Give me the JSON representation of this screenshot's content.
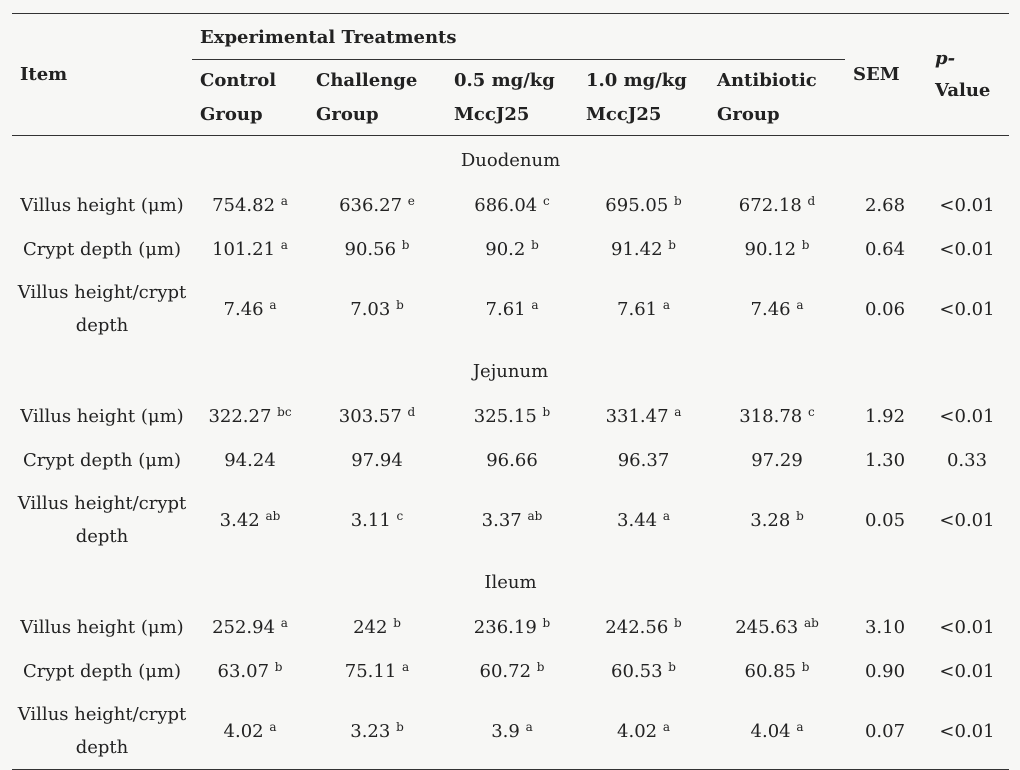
{
  "table": {
    "header": {
      "item": "Item",
      "group_span": "Experimental Treatments",
      "groups": [
        {
          "line1": "Control",
          "line2": "Group"
        },
        {
          "line1": "Challenge",
          "line2": "Group"
        },
        {
          "line1": "0.5 mg/kg",
          "line2": "MccJ25"
        },
        {
          "line1": "1.0 mg/kg",
          "line2": "MccJ25"
        },
        {
          "line1": "Antibiotic",
          "line2": "Group"
        }
      ],
      "sem": "SEM",
      "p_line1": "p-",
      "p_line2": "Value"
    },
    "sections": [
      {
        "name": "Duodenum",
        "rows": [
          {
            "item": "Villus height (μm)",
            "cells": [
              [
                "754.82",
                "a"
              ],
              [
                "636.27",
                "e"
              ],
              [
                "686.04",
                "c"
              ],
              [
                "695.05",
                "b"
              ],
              [
                "672.18",
                "d"
              ]
            ],
            "sem": "2.68",
            "p": "<0.01"
          },
          {
            "item": "Crypt depth (μm)",
            "cells": [
              [
                "101.21",
                "a"
              ],
              [
                "90.56",
                "b"
              ],
              [
                "90.2",
                "b"
              ],
              [
                "91.42",
                "b"
              ],
              [
                "90.12",
                "b"
              ]
            ],
            "sem": "0.64",
            "p": "<0.01"
          },
          {
            "item_line1": "Villus height/crypt",
            "item_line2": "depth",
            "cells": [
              [
                "7.46",
                "a"
              ],
              [
                "7.03",
                "b"
              ],
              [
                "7.61",
                "a"
              ],
              [
                "7.61",
                "a"
              ],
              [
                "7.46",
                "a"
              ]
            ],
            "sem": "0.06",
            "p": "<0.01"
          }
        ]
      },
      {
        "name": "Jejunum",
        "rows": [
          {
            "item": "Villus height (μm)",
            "cells": [
              [
                "322.27",
                "bc"
              ],
              [
                "303.57",
                "d"
              ],
              [
                "325.15",
                "b"
              ],
              [
                "331.47",
                "a"
              ],
              [
                "318.78",
                "c"
              ]
            ],
            "sem": "1.92",
            "p": "<0.01"
          },
          {
            "item": "Crypt depth (μm)",
            "cells": [
              [
                "94.24",
                ""
              ],
              [
                "97.94",
                ""
              ],
              [
                "96.66",
                ""
              ],
              [
                "96.37",
                ""
              ],
              [
                "97.29",
                ""
              ]
            ],
            "sem": "1.30",
            "p": "0.33"
          },
          {
            "item_line1": "Villus height/crypt",
            "item_line2": "depth",
            "cells": [
              [
                "3.42",
                "ab"
              ],
              [
                "3.11",
                "c"
              ],
              [
                "3.37",
                "ab"
              ],
              [
                "3.44",
                "a"
              ],
              [
                "3.28",
                "b"
              ]
            ],
            "sem": "0.05",
            "p": "<0.01"
          }
        ]
      },
      {
        "name": "Ileum",
        "rows": [
          {
            "item": "Villus height (μm)",
            "cells": [
              [
                "252.94",
                "a"
              ],
              [
                "242",
                "b"
              ],
              [
                "236.19",
                "b"
              ],
              [
                "242.56",
                "b"
              ],
              [
                "245.63",
                "ab"
              ]
            ],
            "sem": "3.10",
            "p": "<0.01"
          },
          {
            "item": "Crypt depth (μm)",
            "cells": [
              [
                "63.07",
                "b"
              ],
              [
                "75.11",
                "a"
              ],
              [
                "60.72",
                "b"
              ],
              [
                "60.53",
                "b"
              ],
              [
                "60.85",
                "b"
              ]
            ],
            "sem": "0.90",
            "p": "<0.01"
          },
          {
            "item_line1": "Villus height/crypt",
            "item_line2": "depth",
            "cells": [
              [
                "4.02",
                "a"
              ],
              [
                "3.23",
                "b"
              ],
              [
                "3.9",
                "a"
              ],
              [
                "4.02",
                "a"
              ],
              [
                "4.04",
                "a"
              ]
            ],
            "sem": "0.07",
            "p": "<0.01"
          }
        ]
      }
    ]
  }
}
